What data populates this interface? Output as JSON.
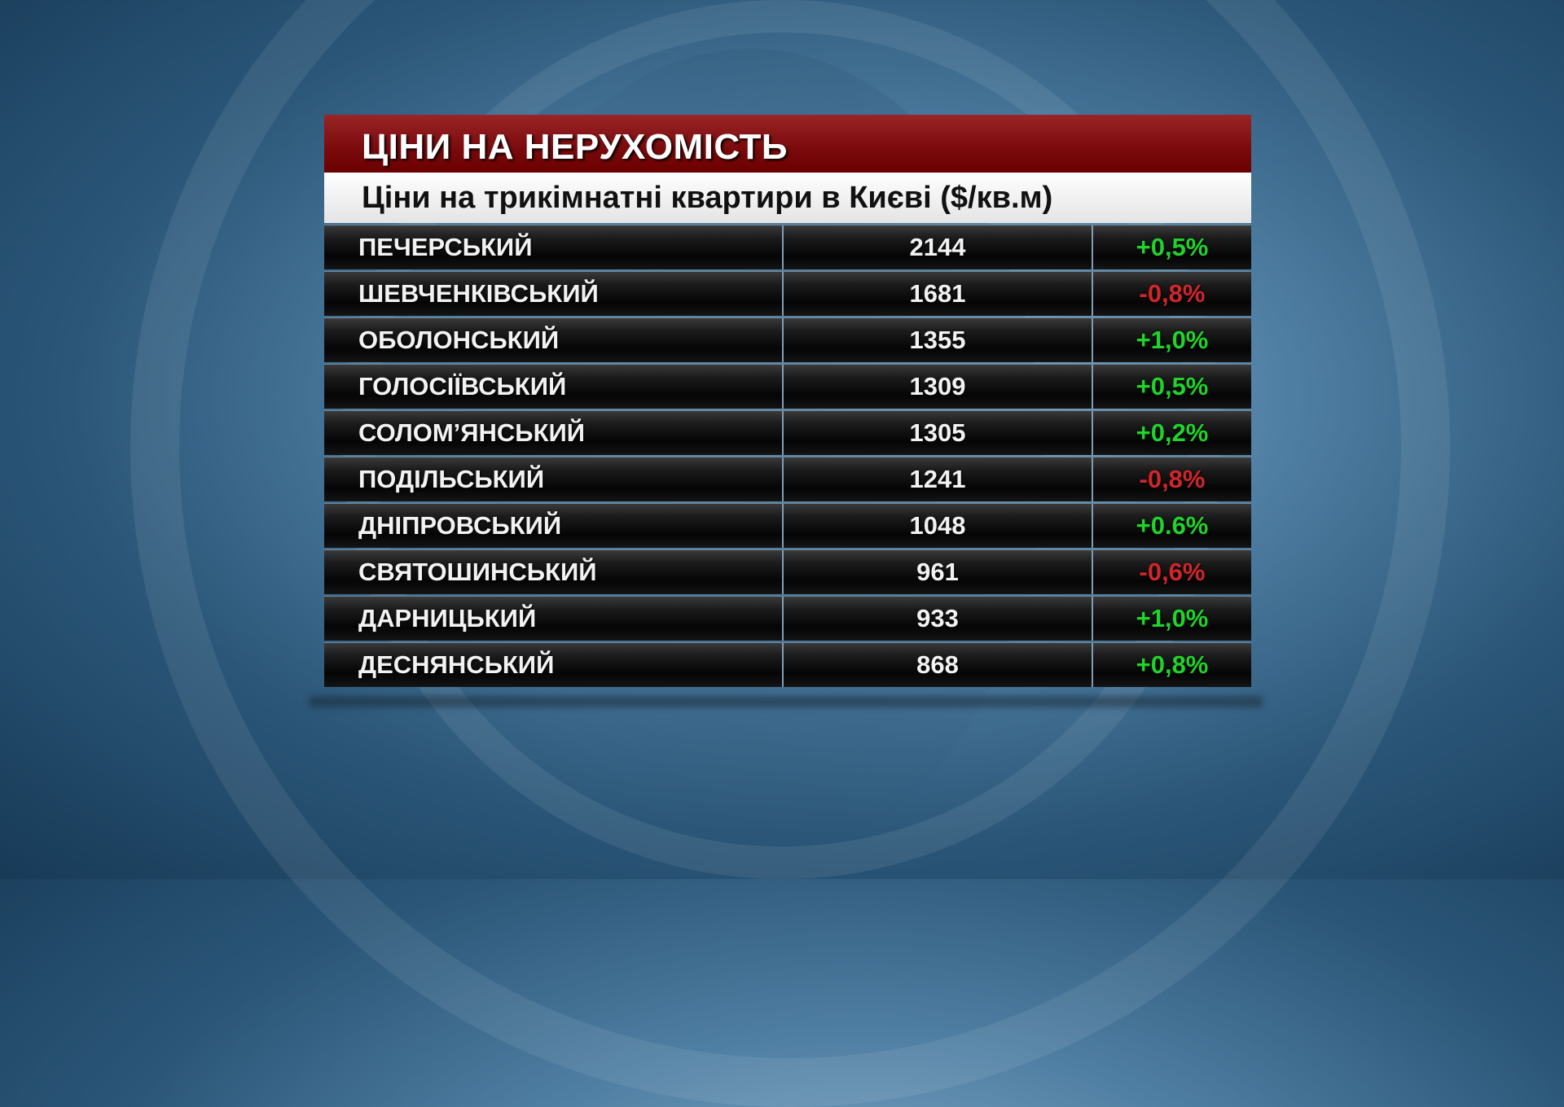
{
  "header": {
    "title": "ЦІНИ НА НЕРУХОМІСТЬ",
    "subtitle": "Ціни на трикімнатні квартири в Києві ($/кв.м)"
  },
  "colors": {
    "positive": "#1fd42a",
    "negative": "#d1262a",
    "header": "#7a0a0c"
  },
  "rows": [
    {
      "district": "ПЕЧЕРСЬКИЙ",
      "price": "2144",
      "change": "+0,5%",
      "trend": "up"
    },
    {
      "district": "ШЕВЧЕНКІВСЬКИЙ",
      "price": "1681",
      "change": "-0,8%",
      "trend": "down"
    },
    {
      "district": "ОБОЛОНСЬКИЙ",
      "price": "1355",
      "change": "+1,0%",
      "trend": "up"
    },
    {
      "district": "ГОЛОСІЇВСЬКИЙ",
      "price": "1309",
      "change": "+0,5%",
      "trend": "up"
    },
    {
      "district": "СОЛОМ’ЯНСЬКИЙ",
      "price": "1305",
      "change": "+0,2%",
      "trend": "up"
    },
    {
      "district": "ПОДІЛЬСЬКИЙ",
      "price": "1241",
      "change": "-0,8%",
      "trend": "down"
    },
    {
      "district": "ДНІПРОВСЬКИЙ",
      "price": "1048",
      "change": "+0.6%",
      "trend": "up"
    },
    {
      "district": "СВЯТОШИНСЬКИЙ",
      "price": "961",
      "change": "-0,6%",
      "trend": "down"
    },
    {
      "district": "ДАРНИЦЬКИЙ",
      "price": "933",
      "change": "+1,0%",
      "trend": "up"
    },
    {
      "district": "ДЕСНЯНСЬКИЙ",
      "price": "868",
      "change": "+0,8%",
      "trend": "up"
    }
  ]
}
